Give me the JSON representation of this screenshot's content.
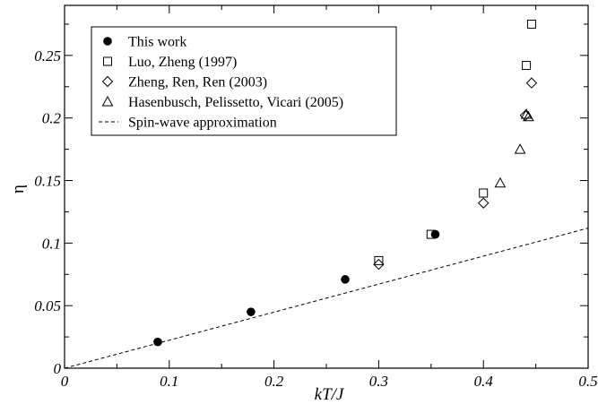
{
  "chart_data": {
    "type": "scatter",
    "title": "",
    "xlabel": "kT/J",
    "ylabel": "η",
    "xlim": [
      0,
      0.5
    ],
    "ylim": [
      0,
      0.29
    ],
    "xticks": [
      0,
      0.1,
      0.2,
      0.3,
      0.4,
      0.5
    ],
    "xtick_labels": [
      "0",
      "0.1",
      "0.2",
      "0.3",
      "0.4",
      "0.5"
    ],
    "yticks": [
      0,
      0.05,
      0.1,
      0.15,
      0.2,
      0.25
    ],
    "ytick_labels": [
      "0",
      "0.05",
      "0.1",
      "0.15",
      "0.2",
      "0.25"
    ],
    "grid": false,
    "legend_position": "top-left",
    "series": [
      {
        "name": "This work",
        "marker": "filled-circle",
        "x": [
          0.089,
          0.178,
          0.268,
          0.354
        ],
        "y": [
          0.021,
          0.045,
          0.071,
          0.107
        ]
      },
      {
        "name": "Luo, Zheng (1997)",
        "marker": "open-square",
        "x": [
          0.3,
          0.35,
          0.4,
          0.441,
          0.446
        ],
        "y": [
          0.086,
          0.107,
          0.14,
          0.242,
          0.275
        ]
      },
      {
        "name": "Zheng, Ren, Ren (2003)",
        "marker": "open-diamond",
        "x": [
          0.3,
          0.4,
          0.44,
          0.446
        ],
        "y": [
          0.083,
          0.132,
          0.202,
          0.228
        ]
      },
      {
        "name": "Hasenbusch, Pelissetto, Vicari (2005)",
        "marker": "open-triangle",
        "x": [
          0.416,
          0.435,
          0.441,
          0.443
        ],
        "y": [
          0.148,
          0.175,
          0.203,
          0.201
        ]
      },
      {
        "name": "Spin-wave approximation",
        "marker": "dashed-line",
        "x": [
          0,
          0.5
        ],
        "y": [
          0,
          0.112
        ]
      }
    ]
  }
}
